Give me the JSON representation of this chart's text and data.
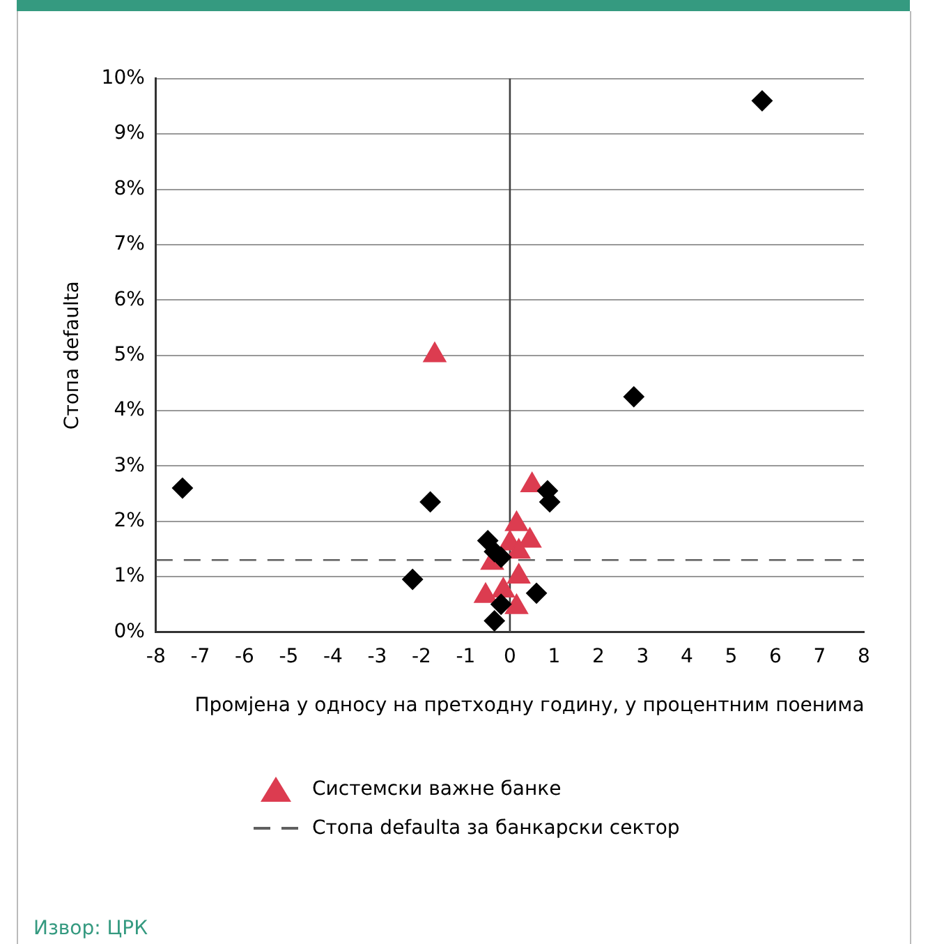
{
  "chart_data": {
    "type": "scatter",
    "xlabel": "Промјена у односу на претходну годину, у процентним поенима",
    "ylabel": "Стопа defaulta",
    "xlim": [
      -8,
      8
    ],
    "xticks": [
      -8,
      -7,
      -6,
      -5,
      -4,
      -3,
      -2,
      -1,
      0,
      1,
      2,
      3,
      4,
      5,
      6,
      7,
      8
    ],
    "ylim": [
      0,
      10
    ],
    "yticks": [
      {
        "value": 0,
        "label": "0%"
      },
      {
        "value": 1,
        "label": "1%"
      },
      {
        "value": 2,
        "label": "2%"
      },
      {
        "value": 3,
        "label": "3%"
      },
      {
        "value": 4,
        "label": "4%"
      },
      {
        "value": 5,
        "label": "5%"
      },
      {
        "value": 6,
        "label": "6%"
      },
      {
        "value": 7,
        "label": "7%"
      },
      {
        "value": 8,
        "label": "8%"
      },
      {
        "value": 9,
        "label": "9%"
      },
      {
        "value": 10,
        "label": "10%"
      }
    ],
    "grid": "y",
    "legend": "bottom",
    "series": [
      {
        "color": "#000000",
        "marker": "diamond",
        "x": [
          5.7,
          2.8,
          -7.4,
          -1.8,
          0.85,
          0.9,
          -0.5,
          -0.35,
          -0.2,
          -2.2,
          0.6,
          -0.2,
          -0.35
        ],
        "values": [
          9.6,
          4.25,
          2.6,
          2.35,
          2.55,
          2.35,
          1.65,
          1.45,
          1.35,
          0.95,
          0.7,
          0.5,
          0.2
        ]
      },
      {
        "name": "Системски важне банке",
        "color": "#dc3c50",
        "marker": "triangle",
        "x": [
          -1.7,
          0.5,
          0.15,
          0.45,
          0.0,
          0.2,
          -0.4,
          0.2,
          -0.15,
          -0.55,
          0.15
        ],
        "values": [
          5.0,
          2.65,
          1.95,
          1.65,
          1.6,
          1.45,
          1.25,
          1.0,
          0.75,
          0.65,
          0.45
        ]
      }
    ],
    "ref_lines": [
      {
        "axis": "x",
        "value": 0,
        "color": "#404040",
        "line_style": "solid"
      },
      {
        "axis": "y",
        "value": 1.3,
        "label": "Стопа defaulta за банкарски сектор",
        "color": "#606060",
        "line_style": "dashed"
      }
    ],
    "annotations": [
      "Извор: ЦРК"
    ]
  }
}
